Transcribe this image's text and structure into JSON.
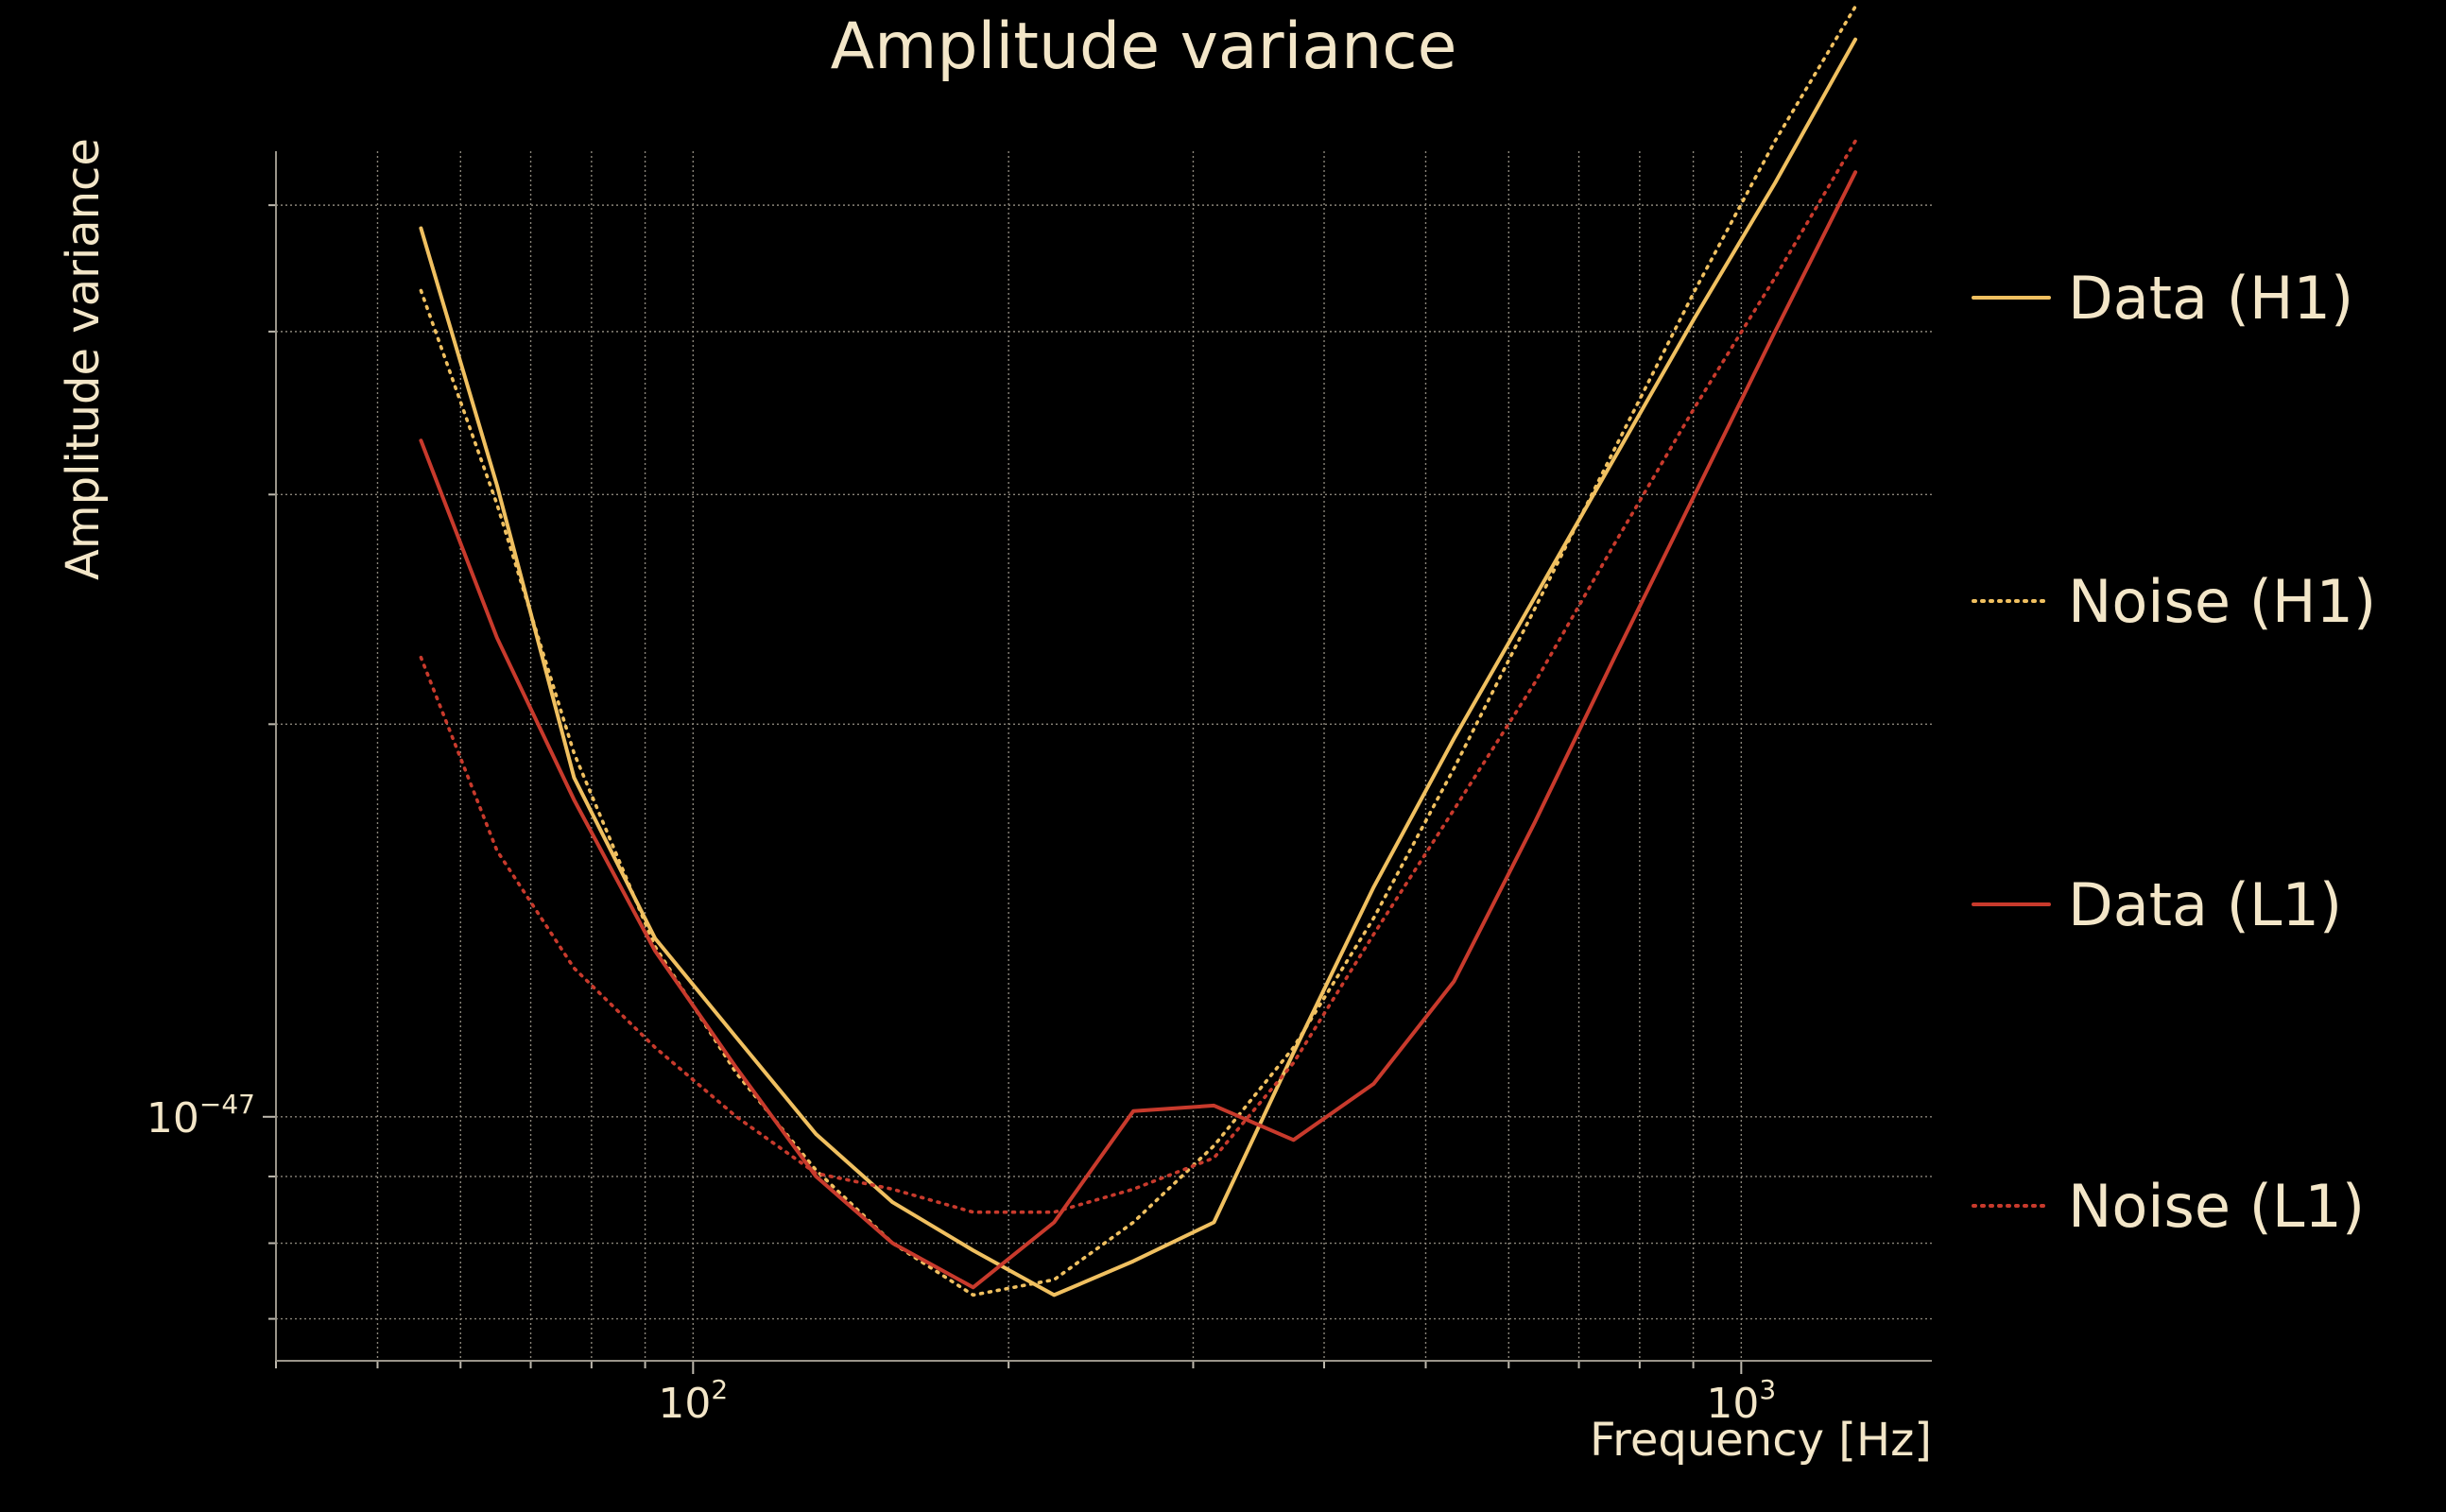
{
  "chart_data": {
    "type": "line",
    "title": "Amplitude variance",
    "xlabel": "Frequency [Hz]",
    "ylabel": "Amplitude variance",
    "xscale": "log",
    "yscale": "log",
    "xlim": [
      40,
      1520
    ],
    "ylim": [
      6.5e-48,
      5.5e-47
    ],
    "grid": true,
    "legend_position": "right",
    "x_ticks": [
      {
        "value": 100,
        "base": "10",
        "exponent": "2"
      },
      {
        "value": 1000,
        "base": "10",
        "exponent": "3"
      }
    ],
    "y_ticks": [
      {
        "value": 1e-47,
        "base": "10",
        "exponent": "−47"
      }
    ],
    "series": [
      {
        "name": "Data (H1)",
        "color": "#f0c060",
        "style": "solid",
        "x": [
          55,
          65,
          77,
          92,
          110,
          131,
          155,
          185,
          221,
          263,
          314,
          374,
          446,
          532,
          635,
          757,
          903,
          1077,
          1285
        ],
        "y": [
          4.8e-47,
          3.05e-47,
          1.82e-47,
          1.37e-47,
          1.15e-47,
          9.7e-48,
          8.6e-48,
          7.9e-48,
          7.3e-48,
          7.75e-48,
          8.3e-48,
          1.12e-47,
          1.5e-47,
          1.95e-47,
          2.5e-47,
          3.2e-47,
          4.1e-47,
          5.2e-47,
          6.7e-47
        ]
      },
      {
        "name": "Noise (H1)",
        "color": "#f0c060",
        "style": "dotted",
        "x": [
          55,
          65,
          77,
          92,
          110,
          131,
          155,
          185,
          221,
          263,
          314,
          374,
          446,
          532,
          635,
          757,
          903,
          1077,
          1285
        ],
        "y": [
          4.3e-47,
          2.95e-47,
          1.9e-47,
          1.35e-47,
          1.08e-47,
          9.1e-48,
          8e-48,
          7.3e-48,
          7.5e-48,
          8.3e-48,
          9.5e-48,
          1.13e-47,
          1.42e-47,
          1.85e-47,
          2.45e-47,
          3.25e-47,
          4.3e-47,
          5.6e-47,
          7.1e-47
        ]
      },
      {
        "name": "Data (L1)",
        "color": "#c83a2c",
        "style": "solid",
        "x": [
          55,
          65,
          77,
          92,
          110,
          131,
          155,
          185,
          221,
          263,
          314,
          374,
          446,
          532,
          635,
          757,
          903,
          1077,
          1285
        ],
        "y": [
          3.3e-47,
          2.33e-47,
          1.75e-47,
          1.34e-47,
          1.09e-47,
          9e-48,
          8e-48,
          7.4e-48,
          8.3e-48,
          1.01e-47,
          1.02e-47,
          9.6e-48,
          1.06e-47,
          1.27e-47,
          1.68e-47,
          2.25e-47,
          3e-47,
          4e-47,
          5.3e-47
        ]
      },
      {
        "name": "Noise (L1)",
        "color": "#c83a2c",
        "style": "dotted",
        "x": [
          55,
          65,
          77,
          92,
          110,
          131,
          155,
          185,
          221,
          263,
          314,
          374,
          446,
          532,
          635,
          757,
          903,
          1077,
          1285
        ],
        "y": [
          2.25e-47,
          1.6e-47,
          1.3e-47,
          1.13e-47,
          1e-47,
          9.05e-48,
          8.8e-48,
          8.45e-48,
          8.45e-48,
          8.8e-48,
          9.3e-48,
          1.1e-47,
          1.38e-47,
          1.72e-47,
          2.15e-47,
          2.75e-47,
          3.5e-47,
          4.4e-47,
          5.6e-47
        ]
      }
    ]
  }
}
